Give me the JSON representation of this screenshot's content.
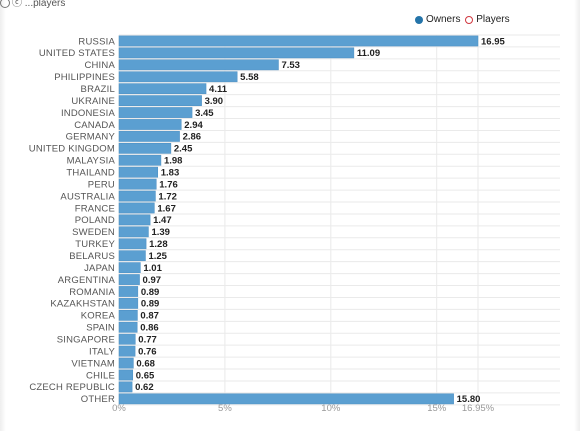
{
  "attribution": {
    "text": "ⓒ ...players"
  },
  "legend": [
    {
      "label": "Owners",
      "style": "filled",
      "color": "#2474a9"
    },
    {
      "label": "Players",
      "style": "ring",
      "color": "#d0373f"
    }
  ],
  "colors": {
    "bar": "#5b9fd1",
    "bar_edge": "#4a8ec2",
    "grid": "#eaeaea"
  },
  "chart_data": {
    "type": "bar",
    "orientation": "horizontal",
    "categories": [
      "RUSSIA",
      "UNITED STATES",
      "CHINA",
      "PHILIPPINES",
      "BRAZIL",
      "UKRAINE",
      "INDONESIA",
      "CANADA",
      "GERMANY",
      "UNITED KINGDOM",
      "MALAYSIA",
      "THAILAND",
      "PERU",
      "AUSTRALIA",
      "FRANCE",
      "POLAND",
      "SWEDEN",
      "TURKEY",
      "BELARUS",
      "JAPAN",
      "ARGENTINA",
      "ROMANIA",
      "KAZAKHSTAN",
      "KOREA",
      "SPAIN",
      "SINGAPORE",
      "ITALY",
      "VIETNAM",
      "CHILE",
      "CZECH REPUBLIC",
      "OTHER"
    ],
    "values": [
      16.95,
      11.09,
      7.53,
      5.58,
      4.11,
      3.9,
      3.45,
      2.94,
      2.86,
      2.45,
      1.98,
      1.83,
      1.76,
      1.72,
      1.67,
      1.47,
      1.39,
      1.28,
      1.25,
      1.01,
      0.97,
      0.89,
      0.89,
      0.87,
      0.86,
      0.77,
      0.76,
      0.68,
      0.65,
      0.62,
      15.8
    ],
    "value_labels": [
      "16.95",
      "11.09",
      "7.53",
      "5.58",
      "4.11",
      "3.90",
      "3.45",
      "2.94",
      "2.86",
      "2.45",
      "1.98",
      "1.83",
      "1.76",
      "1.72",
      "1.67",
      "1.47",
      "1.39",
      "1.28",
      "1.25",
      "1.01",
      "0.97",
      "0.89",
      "0.89",
      "0.87",
      "0.86",
      "0.77",
      "0.76",
      "0.68",
      "0.65",
      "0.62",
      "15.80"
    ],
    "series": [
      {
        "name": "Owners"
      }
    ],
    "xlim": [
      0,
      16.95
    ],
    "xticks": [
      0,
      5,
      10,
      15,
      16.95
    ],
    "xtick_labels": [
      "0%",
      "5%",
      "10%",
      "15%",
      "16.95%"
    ],
    "grid": true,
    "legend_position": "top-right"
  }
}
